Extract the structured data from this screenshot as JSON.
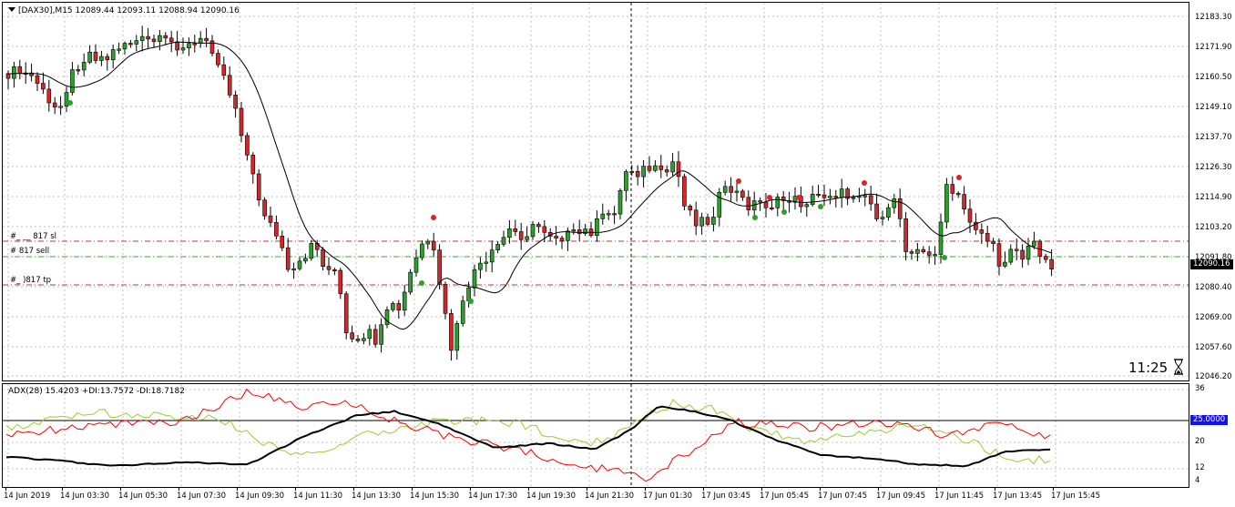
{
  "symbol_info": "[DAX30],M15  12089.44 12093.11 12088.94 12090.16",
  "indicator_info": "ADX(28) 15.4203 +DI:13.7572 -DI:18.7182",
  "timer": "11:25",
  "order_labels": [
    {
      "id": "sl",
      "text": "#_ __ 817 sl"
    },
    {
      "id": "sell",
      "text": "#       817 sell"
    },
    {
      "id": "tp",
      "text": "#_    )817 tp"
    }
  ],
  "price_scale": {
    "labels": [
      "12183.30",
      "12171.90",
      "12160.50",
      "12149.10",
      "12137.70",
      "12126.30",
      "12114.90",
      "12103.20",
      "12091.80",
      "12080.40",
      "12069.00",
      "12057.60",
      "12046.20"
    ],
    "current_price": "12090.16"
  },
  "indicator_scale": {
    "labels": [
      "36",
      "20",
      "12",
      "4"
    ],
    "level": "25.0000"
  },
  "time_axis": [
    "14 Jun 2019",
    "14 Jun 03:30",
    "14 Jun 05:30",
    "14 Jun 07:30",
    "14 Jun 09:30",
    "14 Jun 11:30",
    "14 Jun 13:30",
    "14 Jun 15:30",
    "14 Jun 17:30",
    "14 Jun 19:30",
    "14 Jun 21:30",
    "17 Jun 01:30",
    "17 Jun 03:45",
    "17 Jun 05:45",
    "17 Jun 07:45",
    "17 Jun 09:45",
    "17 Jun 11:45",
    "17 Jun 13:45",
    "17 Jun 15:45"
  ],
  "colors": {
    "bull": "#2ca02c",
    "bear": "#d62728",
    "plus_di": "#9acd32",
    "minus_di": "#ff0000",
    "adx": "#000000",
    "sl_line": "#cc3333",
    "sell_line": "#33aa33",
    "tp_line": "#cc3333",
    "grid": "#c0c0c0"
  },
  "icons": {
    "hourglass": "hourglass-icon",
    "symbol_menu": "triangle-down-icon"
  }
}
